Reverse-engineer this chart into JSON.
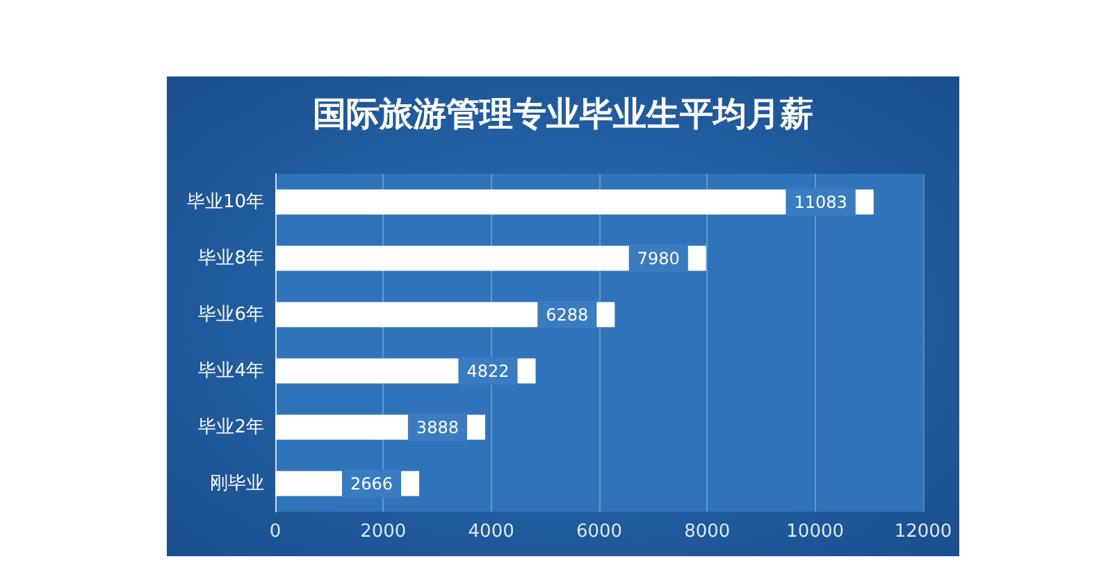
{
  "chart_data": {
    "type": "bar",
    "orientation": "horizontal",
    "title": "国际旅游管理专业毕业生平均月薪",
    "categories": [
      "毕业10年",
      "毕业8年",
      "毕业6年",
      "毕业4年",
      "毕业2年",
      "刚毕业"
    ],
    "values": [
      11083,
      7980,
      6288,
      4822,
      3888,
      2666
    ],
    "color": "#ffffff",
    "xlim": [
      0,
      12000
    ],
    "xticks": [
      0,
      2000,
      4000,
      6000,
      8000,
      10000,
      12000
    ],
    "grid": "x",
    "data_labels": true
  }
}
